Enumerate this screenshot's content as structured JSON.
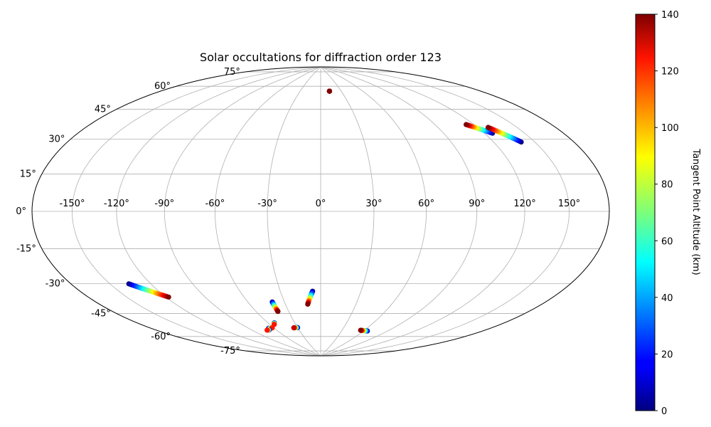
{
  "chart_data": {
    "type": "scatter",
    "projection": "hammer",
    "title": "Solar occultations for diffraction order 123",
    "x_tick_labels": [
      "-150°",
      "-120°",
      "-90°",
      "-60°",
      "-30°",
      "0°",
      "30°",
      "60°",
      "90°",
      "120°",
      "150°"
    ],
    "x_tick_values": [
      -150,
      -120,
      -90,
      -60,
      -30,
      0,
      30,
      60,
      90,
      120,
      150
    ],
    "y_tick_labels": [
      "-75°",
      "-60°",
      "-45°",
      "-30°",
      "-15°",
      "0°",
      "15°",
      "30°",
      "45°",
      "60°",
      "75°"
    ],
    "y_tick_values": [
      -75,
      -60,
      -45,
      -30,
      -15,
      0,
      15,
      30,
      45,
      60,
      75
    ],
    "grid": true,
    "colorbar": {
      "label": "Tangent Point Altitude (km)",
      "colormap": "jet",
      "range": [
        0,
        140
      ],
      "tick_labels": [
        "0",
        "20",
        "40",
        "60",
        "80",
        "100",
        "120",
        "140"
      ],
      "tick_values": [
        0,
        20,
        40,
        60,
        80,
        100,
        120,
        140
      ]
    },
    "series": [
      {
        "lon_start": 13,
        "lat_start": 72,
        "lon_end": 13,
        "lat_end": 72,
        "alt_start": 130,
        "alt_end": 140
      },
      {
        "lon_start": 126,
        "lat_start": 39,
        "lon_end": 114,
        "lat_end": 45,
        "alt_start": 0,
        "alt_end": 140
      },
      {
        "lon_start": 140,
        "lat_start": 33,
        "lon_end": 128,
        "lat_end": 42,
        "alt_start": 0,
        "alt_end": 140
      },
      {
        "lon_start": -136,
        "lat_start": -35,
        "lon_end": -118,
        "lat_end": -44,
        "alt_start": 0,
        "alt_end": 140
      },
      {
        "lon_start": -6,
        "lat_start": -46,
        "lon_end": -11,
        "lat_end": -54,
        "alt_start": 0,
        "alt_end": 140
      },
      {
        "lon_start": -40,
        "lat_start": -52,
        "lon_end": -40,
        "lat_end": -58,
        "alt_start": 0,
        "alt_end": 140
      },
      {
        "lon_start": -53,
        "lat_start": -65,
        "lon_end": -55,
        "lat_end": -66,
        "alt_start": 0,
        "alt_end": 120
      },
      {
        "lon_start": -67,
        "lat_start": -68,
        "lon_end": -62,
        "lat_end": -68,
        "alt_start": 0,
        "alt_end": 120
      },
      {
        "lon_start": -69,
        "lat_start": -69,
        "lon_end": -72,
        "lat_end": -69,
        "alt_start": 0,
        "alt_end": 120
      },
      {
        "lon_start": -30,
        "lat_start": -69,
        "lon_end": -35,
        "lat_end": -69,
        "alt_start": 0,
        "alt_end": 130
      },
      {
        "lon_start": 65,
        "lat_start": -70,
        "lon_end": 55,
        "lat_end": -70,
        "alt_start": 0,
        "alt_end": 140
      }
    ]
  }
}
